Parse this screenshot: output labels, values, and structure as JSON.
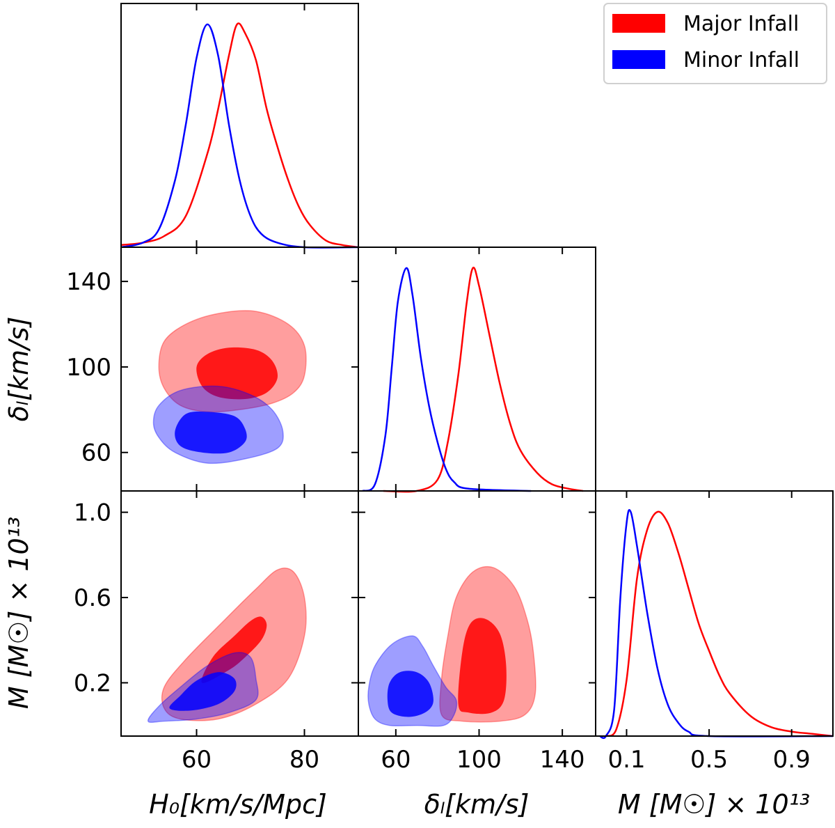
{
  "chart_data": {
    "type": "corner",
    "legend": {
      "placement": "top-right",
      "entries": [
        {
          "label": "Major Infall",
          "color": "#ff0000"
        },
        {
          "label": "Minor Infall",
          "color": "#0000ff"
        }
      ]
    },
    "parameters": [
      {
        "key": "H0",
        "label": "H₀[km/s/Mpc]",
        "range": [
          46,
          90
        ],
        "ticks": [
          60,
          80
        ]
      },
      {
        "key": "delta",
        "label": "δₗ[km/s]",
        "range": [
          42,
          156
        ],
        "ticks": [
          60,
          100,
          140
        ]
      },
      {
        "key": "M",
        "label": "M [M☉] × 10¹³",
        "range": [
          -0.05,
          1.1
        ],
        "ticks": [
          0.1,
          0.5,
          0.9
        ],
        "tick_labels": [
          "0.1",
          "0.5",
          "0.9"
        ],
        "y_ticks": [
          0.2,
          0.6,
          1.0
        ],
        "y_tick_labels": [
          "0.2",
          "0.6",
          "1.0"
        ]
      }
    ],
    "series": [
      {
        "name": "Major Infall",
        "color": "#ff0000",
        "H0_peak": 67.5,
        "H0_curve": [
          [
            46,
            0.01
          ],
          [
            50,
            0.02
          ],
          [
            54,
            0.05
          ],
          [
            58,
            0.14
          ],
          [
            62,
            0.42
          ],
          [
            64,
            0.62
          ],
          [
            66,
            0.86
          ],
          [
            67.5,
            1.0
          ],
          [
            69,
            0.96
          ],
          [
            71,
            0.84
          ],
          [
            73,
            0.62
          ],
          [
            75,
            0.45
          ],
          [
            77,
            0.3
          ],
          [
            79,
            0.18
          ],
          [
            81,
            0.1
          ],
          [
            84,
            0.03
          ],
          [
            87,
            0.01
          ],
          [
            90,
            0.0
          ]
        ],
        "delta_peak": 97,
        "delta_curve": [
          [
            54,
            0.0
          ],
          [
            70,
            0.0
          ],
          [
            80,
            0.05
          ],
          [
            85,
            0.22
          ],
          [
            90,
            0.52
          ],
          [
            94,
            0.84
          ],
          [
            97,
            1.0
          ],
          [
            100,
            0.92
          ],
          [
            105,
            0.7
          ],
          [
            110,
            0.48
          ],
          [
            115,
            0.3
          ],
          [
            120,
            0.18
          ],
          [
            128,
            0.08
          ],
          [
            135,
            0.03
          ],
          [
            143,
            0.01
          ],
          [
            150,
            0.0
          ]
        ],
        "M_peak": 0.25,
        "M_curve": [
          [
            0.0,
            0.0
          ],
          [
            0.05,
            0.03
          ],
          [
            0.1,
            0.25
          ],
          [
            0.15,
            0.7
          ],
          [
            0.2,
            0.92
          ],
          [
            0.25,
            1.0
          ],
          [
            0.3,
            0.95
          ],
          [
            0.35,
            0.82
          ],
          [
            0.4,
            0.66
          ],
          [
            0.45,
            0.5
          ],
          [
            0.5,
            0.38
          ],
          [
            0.55,
            0.27
          ],
          [
            0.6,
            0.19
          ],
          [
            0.7,
            0.09
          ],
          [
            0.8,
            0.04
          ],
          [
            0.9,
            0.02
          ],
          [
            1.0,
            0.01
          ],
          [
            1.1,
            0.0
          ]
        ],
        "H0_delta_contours": [
          {
            "level": "outer",
            "points": [
              [
                53,
                100
              ],
              [
                54,
                90
              ],
              [
                57,
                82
              ],
              [
                62,
                79
              ],
              [
                68,
                80
              ],
              [
                74,
                83
              ],
              [
                78,
                88
              ],
              [
                80,
                96
              ],
              [
                80,
                110
              ],
              [
                77,
                120
              ],
              [
                71,
                126
              ],
              [
                64,
                125
              ],
              [
                58,
                120
              ],
              [
                54,
                112
              ]
            ]
          },
          {
            "level": "inner",
            "points": [
              [
                60,
                100
              ],
              [
                61,
                91
              ],
              [
                64,
                86
              ],
              [
                69,
                85
              ],
              [
                73,
                88
              ],
              [
                75,
                95
              ],
              [
                74,
                103
              ],
              [
                71,
                108
              ],
              [
                66,
                109
              ],
              [
                62,
                106
              ]
            ]
          }
        ],
        "H0_M_contours": [
          {
            "level": "outer",
            "points": [
              [
                54,
                0.08
              ],
              [
                57,
                0.03
              ],
              [
                64,
                0.03
              ],
              [
                71,
                0.1
              ],
              [
                77,
                0.22
              ],
              [
                80,
                0.42
              ],
              [
                80,
                0.6
              ],
              [
                78,
                0.72
              ],
              [
                75,
                0.73
              ],
              [
                71,
                0.64
              ],
              [
                65,
                0.49
              ],
              [
                58,
                0.31
              ],
              [
                54,
                0.18
              ]
            ]
          },
          {
            "level": "inner",
            "points": [
              [
                61,
                0.2
              ],
              [
                66,
                0.26
              ],
              [
                69,
                0.32
              ],
              [
                72,
                0.4
              ],
              [
                73,
                0.47
              ],
              [
                72,
                0.51
              ],
              [
                70,
                0.49
              ],
              [
                67,
                0.42
              ],
              [
                63,
                0.32
              ]
            ]
          }
        ],
        "delta_M_contours": [
          {
            "level": "outer",
            "points": [
              [
                82,
                0.05
              ],
              [
                92,
                0.02
              ],
              [
                110,
                0.02
              ],
              [
                122,
                0.05
              ],
              [
                127,
                0.15
              ],
              [
                126,
                0.35
              ],
              [
                123,
                0.5
              ],
              [
                117,
                0.65
              ],
              [
                107,
                0.74
              ],
              [
                97,
                0.72
              ],
              [
                89,
                0.6
              ],
              [
                85,
                0.42
              ],
              [
                82,
                0.22
              ]
            ]
          },
          {
            "level": "inner",
            "points": [
              [
                90,
                0.1
              ],
              [
                95,
                0.06
              ],
              [
                106,
                0.06
              ],
              [
                112,
                0.12
              ],
              [
                113,
                0.28
              ],
              [
                110,
                0.43
              ],
              [
                103,
                0.5
              ],
              [
                96,
                0.48
              ],
              [
                92,
                0.35
              ]
            ]
          }
        ]
      },
      {
        "name": "Minor Infall",
        "color": "#0000ff",
        "H0_peak": 62,
        "H0_curve": [
          [
            46,
            0.0
          ],
          [
            50,
            0.02
          ],
          [
            53,
            0.08
          ],
          [
            56,
            0.3
          ],
          [
            58,
            0.55
          ],
          [
            60,
            0.85
          ],
          [
            62,
            1.0
          ],
          [
            64,
            0.86
          ],
          [
            66,
            0.55
          ],
          [
            68,
            0.3
          ],
          [
            70,
            0.14
          ],
          [
            72,
            0.06
          ],
          [
            75,
            0.02
          ],
          [
            80,
            0.0
          ],
          [
            90,
            0.0
          ]
        ],
        "delta_peak": 65,
        "delta_curve": [
          [
            44,
            0.0
          ],
          [
            50,
            0.03
          ],
          [
            55,
            0.25
          ],
          [
            58,
            0.55
          ],
          [
            61,
            0.85
          ],
          [
            65,
            1.0
          ],
          [
            68,
            0.88
          ],
          [
            72,
            0.6
          ],
          [
            76,
            0.38
          ],
          [
            80,
            0.22
          ],
          [
            84,
            0.1
          ],
          [
            88,
            0.04
          ],
          [
            95,
            0.01
          ],
          [
            125,
            0.0
          ]
        ],
        "M_peak": 0.11,
        "M_curve": [
          [
            -0.03,
            0.0
          ],
          [
            0.0,
            0.0
          ],
          [
            0.04,
            0.12
          ],
          [
            0.07,
            0.62
          ],
          [
            0.1,
            0.95
          ],
          [
            0.12,
            1.0
          ],
          [
            0.15,
            0.85
          ],
          [
            0.2,
            0.55
          ],
          [
            0.25,
            0.3
          ],
          [
            0.3,
            0.14
          ],
          [
            0.35,
            0.06
          ],
          [
            0.4,
            0.02
          ],
          [
            0.5,
            0.0
          ],
          [
            1.1,
            0.0
          ]
        ],
        "H0_delta_contours": [
          {
            "level": "outer",
            "points": [
              [
                52,
                74
              ],
              [
                53,
                67
              ],
              [
                56,
                60
              ],
              [
                62,
                55
              ],
              [
                69,
                57
              ],
              [
                75,
                62
              ],
              [
                76,
                70
              ],
              [
                74,
                80
              ],
              [
                70,
                87
              ],
              [
                64,
                91
              ],
              [
                57,
                89
              ],
              [
                53,
                82
              ]
            ]
          },
          {
            "level": "inner",
            "points": [
              [
                56,
                70
              ],
              [
                57,
                63
              ],
              [
                61,
                60
              ],
              [
                66,
                60
              ],
              [
                69,
                65
              ],
              [
                69,
                71
              ],
              [
                67,
                77
              ],
              [
                62,
                79
              ],
              [
                58,
                78
              ]
            ]
          }
        ],
        "H0_M_contours": [
          {
            "level": "outer",
            "points": [
              [
                51,
                0.02
              ],
              [
                54,
                0.02
              ],
              [
                60,
                0.03
              ],
              [
                66,
                0.06
              ],
              [
                71,
                0.12
              ],
              [
                71,
                0.22
              ],
              [
                70,
                0.32
              ],
              [
                67,
                0.34
              ],
              [
                62,
                0.28
              ],
              [
                57,
                0.18
              ],
              [
                53,
                0.09
              ]
            ]
          },
          {
            "level": "inner",
            "points": [
              [
                55,
                0.08
              ],
              [
                59,
                0.07
              ],
              [
                64,
                0.1
              ],
              [
                67,
                0.16
              ],
              [
                67,
                0.22
              ],
              [
                64,
                0.25
              ],
              [
                60,
                0.21
              ],
              [
                57,
                0.14
              ]
            ]
          }
        ],
        "delta_M_contours": [
          {
            "level": "outer",
            "points": [
              [
                47,
                0.1
              ],
              [
                50,
                0.03
              ],
              [
                57,
                0.0
              ],
              [
                70,
                0.0
              ],
              [
                83,
                0.0
              ],
              [
                88,
                0.05
              ],
              [
                89,
                0.12
              ],
              [
                84,
                0.18
              ],
              [
                78,
                0.28
              ],
              [
                73,
                0.37
              ],
              [
                68,
                0.42
              ],
              [
                58,
                0.38
              ],
              [
                50,
                0.28
              ],
              [
                47,
                0.18
              ]
            ]
          },
          {
            "level": "inner",
            "points": [
              [
                56,
                0.12
              ],
              [
                58,
                0.06
              ],
              [
                66,
                0.04
              ],
              [
                74,
                0.06
              ],
              [
                78,
                0.11
              ],
              [
                76,
                0.2
              ],
              [
                70,
                0.25
              ],
              [
                62,
                0.25
              ],
              [
                57,
                0.2
              ]
            ]
          }
        ]
      }
    ]
  }
}
